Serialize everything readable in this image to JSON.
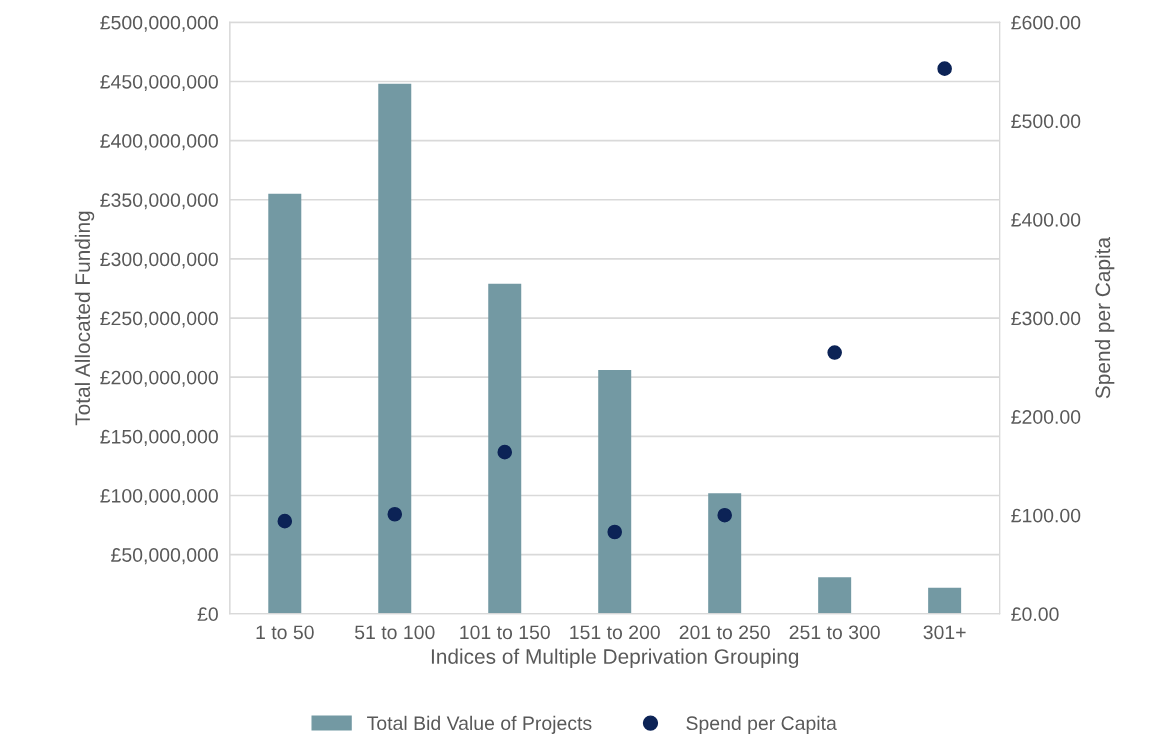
{
  "chart_data": {
    "type": "bar",
    "xlabel": "Indices of Multiple Deprivation Grouping",
    "ylabel": "Total Allocated Funding",
    "y2label": "Spend per Capita",
    "categories": [
      "1 to 50",
      "51 to 100",
      "101 to 150",
      "151 to 200",
      "201 to 250",
      "251 to 300",
      "301+"
    ],
    "series": [
      {
        "name": "Total Bid Value of Projects",
        "color": "#7399a3",
        "values": [
          355000000,
          448000000,
          279000000,
          206000000,
          102000000,
          31000000,
          22000000
        ]
      },
      {
        "name": "Spend per Capita",
        "type": "scatter",
        "axis": "y2",
        "color": "#0c2356",
        "marker": "circle",
        "values": [
          94,
          101,
          164,
          83,
          100,
          265,
          553
        ]
      }
    ],
    "ylim": [
      0,
      500000000
    ],
    "yticks": [
      {
        "value": 0,
        "label": "£0"
      },
      {
        "value": 50000000,
        "label": "£50,000,000"
      },
      {
        "value": 100000000,
        "label": "£100,000,000"
      },
      {
        "value": 150000000,
        "label": "£150,000,000"
      },
      {
        "value": 200000000,
        "label": "£200,000,000"
      },
      {
        "value": 250000000,
        "label": "£250,000,000"
      },
      {
        "value": 300000000,
        "label": "£300,000,000"
      },
      {
        "value": 350000000,
        "label": "£350,000,000"
      },
      {
        "value": 400000000,
        "label": "£400,000,000"
      },
      {
        "value": 450000000,
        "label": "£450,000,000"
      },
      {
        "value": 500000000,
        "label": "£500,000,000"
      }
    ],
    "y2lim": [
      0,
      600
    ],
    "y2ticks": [
      {
        "value": 0,
        "label": "£0.00"
      },
      {
        "value": 100,
        "label": "£100.00"
      },
      {
        "value": 200,
        "label": "£200.00"
      },
      {
        "value": 300,
        "label": "£300.00"
      },
      {
        "value": 400,
        "label": "£400.00"
      },
      {
        "value": 500,
        "label": "£500.00"
      },
      {
        "value": 600,
        "label": "£600.00"
      }
    ],
    "grid": "y",
    "legend": "bottom"
  }
}
